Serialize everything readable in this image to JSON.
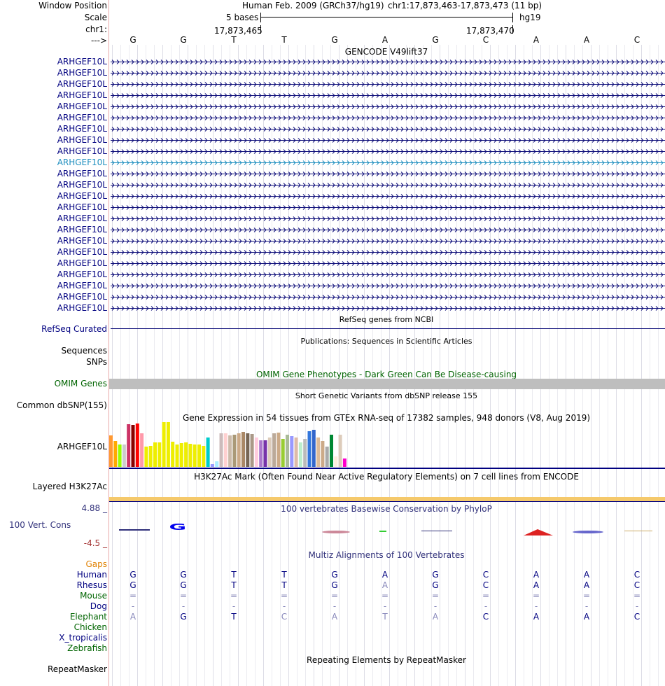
{
  "header": {
    "window_position_label": "Window Position",
    "scale_label": "Scale",
    "chr_label": "chr1:",
    "arrow_label": "--->",
    "assembly": "Human Feb. 2009 (GRCh37/hg19)",
    "position": "chr1:17,873,463-17,873,473 (11 bp)",
    "scale_text": "5 bases",
    "db": "hg19",
    "coord_left": "17,873,465",
    "coord_right": "17,873,470"
  },
  "sequence": [
    "G",
    "G",
    "T",
    "T",
    "G",
    "A",
    "G",
    "C",
    "A",
    "A",
    "C"
  ],
  "gencode": {
    "title": "GENCODE V49lift37",
    "gene_labels": [
      "ARHGEF10L",
      "ARHGEF10L",
      "ARHGEF10L",
      "ARHGEF10L",
      "ARHGEF10L",
      "ARHGEF10L",
      "ARHGEF10L",
      "ARHGEF10L",
      "ARHGEF10L",
      "ARHGEF10L",
      "ARHGEF10L",
      "ARHGEF10L",
      "ARHGEF10L",
      "ARHGEF10L",
      "ARHGEF10L",
      "ARHGEF10L",
      "ARHGEF10L",
      "ARHGEF10L",
      "ARHGEF10L",
      "ARHGEF10L",
      "ARHGEF10L",
      "ARHGEF10L",
      "ARHGEF10L"
    ],
    "highlight_index": 9
  },
  "refseq": {
    "title": "RefSeq genes from NCBI",
    "label": "RefSeq Curated"
  },
  "publications": {
    "title": "Publications: Sequences in Scientific Articles",
    "label1": "Sequences",
    "label2": "SNPs"
  },
  "omim": {
    "title": "OMIM Gene Phenotypes - Dark Green Can Be Disease-causing",
    "label": "OMIM Genes"
  },
  "dbsnp": {
    "title": "Short Genetic Variants from dbSNP release 155",
    "label": "Common dbSNP(155)"
  },
  "gtex": {
    "title": "Gene Expression in 54 tissues from GTEx RNA-seq of 17382 samples, 948 donors (V8, Aug 2019)",
    "label": "ARHGEF10L",
    "bars": [
      {
        "v": 0.7,
        "c": "#ff9933"
      },
      {
        "v": 0.58,
        "c": "#ffaa00"
      },
      {
        "v": 0.5,
        "c": "#99ff00"
      },
      {
        "v": 0.5,
        "c": "#cccccc"
      },
      {
        "v": 0.95,
        "c": "#cc3366"
      },
      {
        "v": 0.93,
        "c": "#880000"
      },
      {
        "v": 0.97,
        "c": "#ff0000"
      },
      {
        "v": 0.75,
        "c": "#ff99aa"
      },
      {
        "v": 0.45,
        "c": "#eeee00"
      },
      {
        "v": 0.47,
        "c": "#eeee00"
      },
      {
        "v": 0.55,
        "c": "#eeee00"
      },
      {
        "v": 0.55,
        "c": "#eeee00"
      },
      {
        "v": 1.0,
        "c": "#eeee00"
      },
      {
        "v": 1.0,
        "c": "#eeee00"
      },
      {
        "v": 0.57,
        "c": "#eeee00"
      },
      {
        "v": 0.5,
        "c": "#eeee00"
      },
      {
        "v": 0.53,
        "c": "#eeee00"
      },
      {
        "v": 0.55,
        "c": "#eeee00"
      },
      {
        "v": 0.52,
        "c": "#eeee00"
      },
      {
        "v": 0.5,
        "c": "#eeee00"
      },
      {
        "v": 0.5,
        "c": "#eeee00"
      },
      {
        "v": 0.47,
        "c": "#eeee00"
      },
      {
        "v": 0.65,
        "c": "#00cccc"
      },
      {
        "v": 0.07,
        "c": "#9999ff"
      },
      {
        "v": 0.12,
        "c": "#aaeeff"
      },
      {
        "v": 0.75,
        "c": "#ccbbbb"
      },
      {
        "v": 0.75,
        "c": "#ffd0d0"
      },
      {
        "v": 0.7,
        "c": "#ccbbaa"
      },
      {
        "v": 0.72,
        "c": "#aa9977"
      },
      {
        "v": 0.75,
        "c": "#ccaa88"
      },
      {
        "v": 0.78,
        "c": "#aa8866"
      },
      {
        "v": 0.75,
        "c": "#776655"
      },
      {
        "v": 0.73,
        "c": "#aa9988"
      },
      {
        "v": 0.65,
        "c": "#ffccdd"
      },
      {
        "v": 0.6,
        "c": "#aa77cc"
      },
      {
        "v": 0.6,
        "c": "#7733aa"
      },
      {
        "v": 0.65,
        "c": "#ddccbb"
      },
      {
        "v": 0.75,
        "c": "#bbaa99"
      },
      {
        "v": 0.77,
        "c": "#ccaa88"
      },
      {
        "v": 0.62,
        "c": "#99cc33"
      },
      {
        "v": 0.72,
        "c": "#aabb99"
      },
      {
        "v": 0.68,
        "c": "#9999ff"
      },
      {
        "v": 0.65,
        "c": "#ddbbaa"
      },
      {
        "v": 0.55,
        "c": "#bbeecc"
      },
      {
        "v": 0.63,
        "c": "#bbbbbb"
      },
      {
        "v": 0.8,
        "c": "#3377dd"
      },
      {
        "v": 0.83,
        "c": "#3366cc"
      },
      {
        "v": 0.66,
        "c": "#ddbb99"
      },
      {
        "v": 0.58,
        "c": "#ccaa88"
      },
      {
        "v": 0.45,
        "c": "#aaaaaa"
      },
      {
        "v": 0.72,
        "c": "#008833"
      },
      {
        "v": 0.23,
        "c": "#ffeedd"
      },
      {
        "v": 0.72,
        "c": "#ddccbb"
      },
      {
        "v": 0.18,
        "c": "#ff00cc"
      }
    ]
  },
  "h3k27ac": {
    "title": "H3K27Ac Mark (Often Found Near Active Regulatory Elements) on 7 cell lines from ENCODE",
    "label": "Layered H3K27Ac"
  },
  "phylop": {
    "title": "100 vertebrates Basewise Conservation by PhyloP",
    "label": "100 Vert. Cons",
    "max_label": "4.88 _",
    "min_label": "-4.5 _"
  },
  "multiz": {
    "title": "Multiz Alignments of 100 Vertebrates",
    "gaps_label": "Gaps",
    "species": [
      {
        "name": "Human",
        "color": "#000080",
        "bases": [
          "G",
          "G",
          "T",
          "T",
          "G",
          "A",
          "G",
          "C",
          "A",
          "A",
          "C"
        ],
        "faded": []
      },
      {
        "name": "Rhesus",
        "color": "#000080",
        "bases": [
          "G",
          "G",
          "T",
          "T",
          "G",
          "A",
          "G",
          "C",
          "A",
          "A",
          "C"
        ],
        "faded": [
          5
        ]
      },
      {
        "name": "Mouse",
        "color": "#006400",
        "bases": [
          "=",
          "=",
          "=",
          "=",
          "=",
          "=",
          "=",
          "=",
          "=",
          "=",
          "="
        ],
        "faded": [
          0,
          1,
          2,
          3,
          4,
          5,
          6,
          7,
          8,
          9,
          10
        ]
      },
      {
        "name": "Dog",
        "color": "#000080",
        "bases": [
          "-",
          "-",
          "-",
          "-",
          "-",
          "-",
          "-",
          "-",
          "-",
          "-",
          "-"
        ],
        "faded": [
          0,
          1,
          2,
          3,
          4,
          5,
          6,
          7,
          8,
          9,
          10
        ]
      },
      {
        "name": "Elephant",
        "color": "#006400",
        "bases": [
          "A",
          "G",
          "T",
          "C",
          "A",
          "T",
          "A",
          "C",
          "A",
          "A",
          "C"
        ],
        "faded": [
          0,
          3,
          4,
          5,
          6
        ]
      },
      {
        "name": "Chicken",
        "color": "#006400",
        "bases": [],
        "faded": []
      },
      {
        "name": "X_tropicalis",
        "color": "#000080",
        "bases": [],
        "faded": []
      },
      {
        "name": "Zebrafish",
        "color": "#006400",
        "bases": [],
        "faded": []
      }
    ]
  },
  "repeatmasker": {
    "title": "Repeating Elements by RepeatMasker",
    "label": "RepeatMasker"
  },
  "colors": {
    "navy": "#000080",
    "gene_blue": "#0c0c78",
    "highlight": "#1f8fbf",
    "omim_gray": "#bebebe",
    "h3k_bar": "#f5c96b",
    "phylop_navy": "#30307a",
    "phylop_red": "#a23030",
    "gaps_orange": "#e08000"
  }
}
